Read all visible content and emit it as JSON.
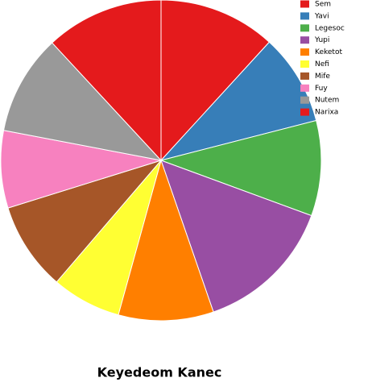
{
  "chart_data": {
    "type": "pie",
    "title": "Keyedeom Kanec",
    "categories": [
      "Sem",
      "Yavi",
      "Legesoc",
      "Yupi",
      "Keketot",
      "Nefi",
      "Mife",
      "Fuy",
      "Nutem",
      "Narixa"
    ],
    "values": [
      11.8,
      9.2,
      9.6,
      14.1,
      9.6,
      7.0,
      8.9,
      7.8,
      10.1,
      11.9
    ],
    "colors": [
      "#e41a1c",
      "#377eb8",
      "#4daf4a",
      "#984ea3",
      "#ff7f00",
      "#ffff33",
      "#a65628",
      "#f781bf",
      "#999999",
      "#e41a1c"
    ],
    "legend": "upper right"
  }
}
